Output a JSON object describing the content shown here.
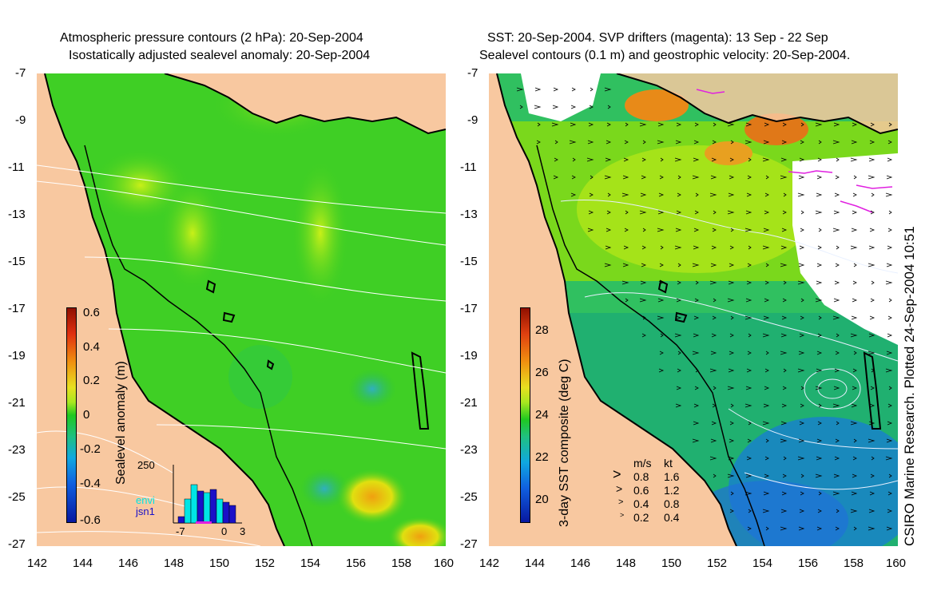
{
  "left_panel": {
    "title_line1": "Atmospheric pressure contours (2 hPa): 20-Sep-2004",
    "title_line2": "Isostatically adjusted sealevel anomaly: 20-Sep-2004",
    "colorbar_label": "Sealevel anomaly (m)",
    "colorbar_ticks": [
      "0.6",
      "0.4",
      "0.2",
      "0",
      "-0.2",
      "-0.4",
      "-0.6"
    ],
    "histogram": {
      "ymax_label": "250",
      "x_ticks": [
        "-7",
        "0",
        "3"
      ],
      "series": [
        {
          "name": "envi",
          "color": "#00e5e5"
        },
        {
          "name": "jsn1",
          "color": "#1a10c8"
        }
      ]
    }
  },
  "right_panel": {
    "title_line1": "SST: 20-Sep-2004. SVP drifters (magenta): 13 Sep - 22 Sep",
    "title_line2": "Sealevel contours (0.1 m) and geostrophic velocity: 20-Sep-2004.",
    "colorbar_label": "3-day SST composite (deg C)",
    "colorbar_ticks": [
      "28",
      "26",
      "24",
      "22",
      "20"
    ],
    "velocity_legend": {
      "header_ms": "m/s",
      "header_kt": "kt",
      "rows": [
        {
          "ms": "0.8",
          "kt": "1.6"
        },
        {
          "ms": "0.6",
          "kt": "1.2"
        },
        {
          "ms": "0.4",
          "kt": "0.8"
        },
        {
          "ms": "0.2",
          "kt": "0.4"
        }
      ]
    }
  },
  "axes": {
    "lat_ticks": [
      "-7",
      "-9",
      "-11",
      "-13",
      "-15",
      "-17",
      "-19",
      "-21",
      "-23",
      "-25",
      "-27"
    ],
    "lon_ticks": [
      "142",
      "144",
      "146",
      "148",
      "150",
      "152",
      "154",
      "156",
      "158",
      "160"
    ]
  },
  "credit": "CSIRO Marine Research. Plotted 24-Sep-2004 10:51",
  "colors": {
    "land": "#f8c8a0",
    "sea": "#33cc2a",
    "coast": "#000000",
    "drifters": "#e020e0"
  }
}
